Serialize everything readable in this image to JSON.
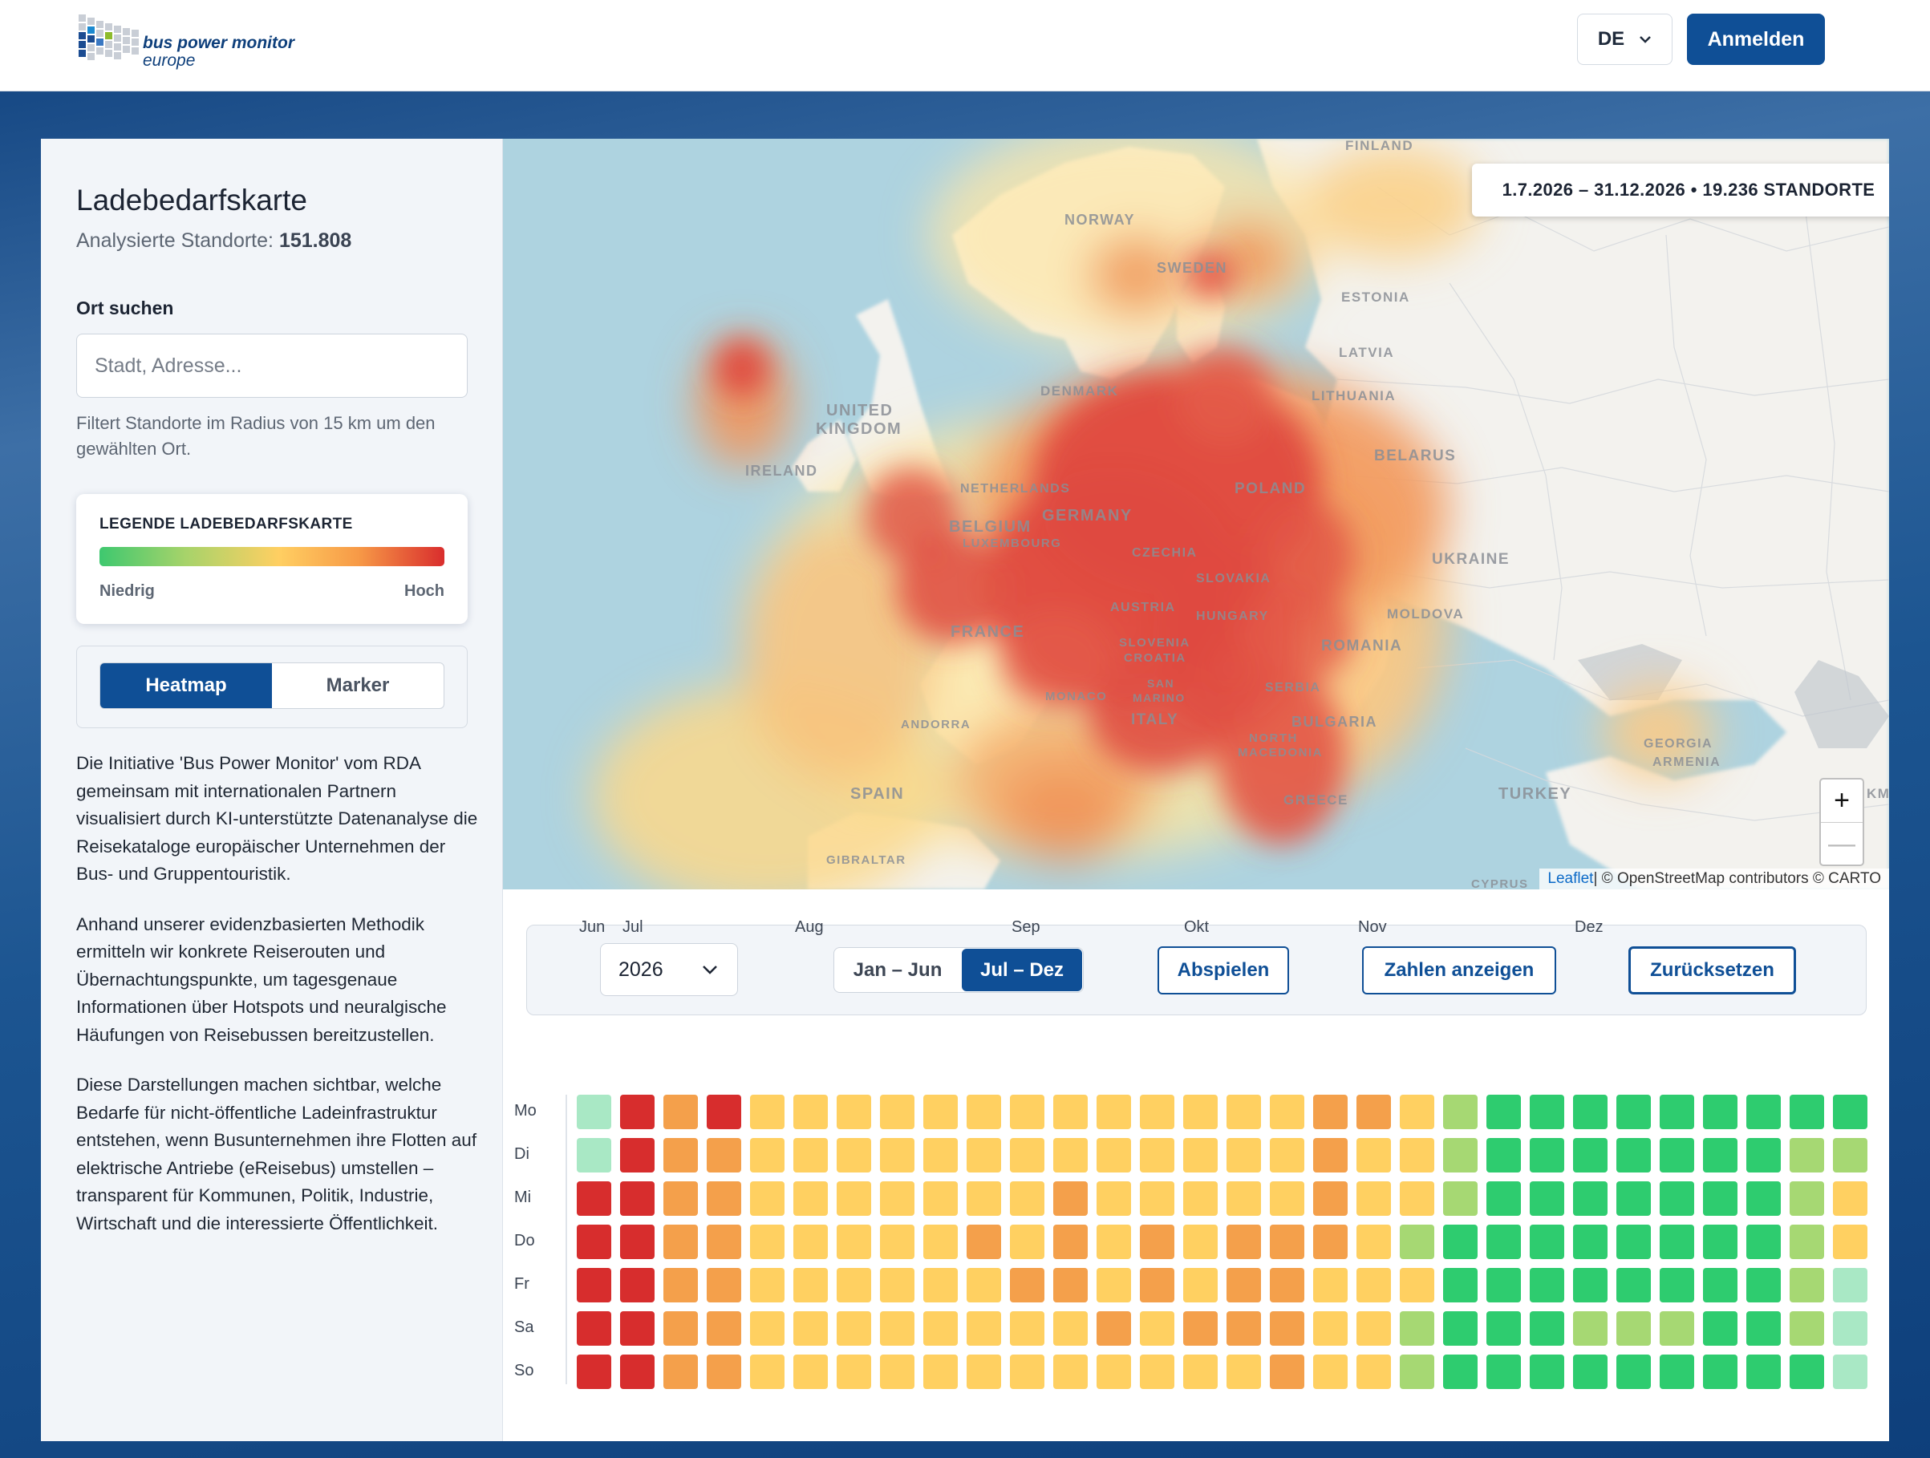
{
  "header": {
    "logo_name": "bus power monitor",
    "logo_sub": "europe",
    "language": "DE",
    "login_label": "Anmelden"
  },
  "sidebar": {
    "title": "Ladebedarfskarte",
    "count_label": "Analysierte Standorte:",
    "count_value": "151.808",
    "search_label": "Ort suchen",
    "search_placeholder": "Stadt, Adresse...",
    "search_hint": "Filtert Standorte im Radius von 15 km um den gewählten Ort.",
    "legend_title": "LEGENDE LADEBEDARFSKARTE",
    "legend_low": "Niedrig",
    "legend_high": "Hoch",
    "view_heatmap": "Heatmap",
    "view_marker": "Marker",
    "paragraphs": [
      "Die Initiative 'Bus Power Monitor' vom RDA gemeinsam mit internationalen Partnern visualisiert durch KI-unterstützte Datenanalyse die Reisekataloge europäischer Unternehmen der Bus- und Gruppentouristik.",
      "Anhand unserer evidenzbasierten Methodik ermitteln wir konkrete Reiserouten und Übernachtungspunkte, um tagesgenaue Informationen über Hotspots und neuralgische Häufungen von Reisebussen bereitzustellen.",
      "Diese Darstellungen machen sichtbar, welche Bedarfe für nicht-öffentliche Ladeinfrastruktur entstehen, wenn Busunternehmen ihre Flotten auf elektrische Antriebe (eReisebus) umstellen – transparent für Kommunen, Politik, Industrie, Wirtschaft und die interessierte Öffentlichkeit."
    ]
  },
  "map": {
    "range_badge": "1.7.2026 – 31.12.2026 • 19.236 STANDORTE",
    "zoom_in": "+",
    "zoom_out": "—",
    "attribution_link": "Leaflet",
    "attribution_text": " | © OpenStreetMap contributors © CARTO",
    "country_labels": [
      "FINLAND",
      "NORWAY",
      "SWEDEN",
      "ESTONIA",
      "LATVIA",
      "LITHUANIA",
      "DENMARK",
      "UNITED",
      "KINGDOM",
      "IRELAND",
      "NETHERLANDS",
      "BELGIUM",
      "LUXEMBOURG",
      "GERMANY",
      "POLAND",
      "BELARUS",
      "CZECHIA",
      "SLOVAKIA",
      "UKRAINE",
      "AUSTRIA",
      "HUNGARY",
      "MOLDOVA",
      "FRANCE",
      "SLOVENIA",
      "CROATIA",
      "ROMANIA",
      "SERBIA",
      "SAN",
      "MARINO",
      "MONACO",
      "ANDORRA",
      "ITALY",
      "BULGARIA",
      "NORTH",
      "MACEDONIA",
      "SPAIN",
      "GEORGIA",
      "ARMENIA",
      "TURKEY",
      "GREECE",
      "GIBRALTAR",
      "CYPRUS",
      "KM"
    ],
    "colors": {
      "low": "#3ec86f",
      "mid": "#ffcf62",
      "high": "#d92d2d"
    }
  },
  "controls": {
    "year": "2026",
    "half_1": "Jan – Jun",
    "half_2": "Jul – Dez",
    "play_label": "Abspielen",
    "numbers_label": "Zahlen anzeigen",
    "reset_label": "Zurücksetzen"
  },
  "calendar": {
    "months": [
      "Jun",
      "Jul",
      "Aug",
      "Sep",
      "Okt",
      "Nov",
      "Dez"
    ],
    "days": [
      "Mo",
      "Di",
      "Mi",
      "Do",
      "Fr",
      "Sa",
      "So"
    ],
    "level_colors": [
      "#a9e8c5",
      "#a6d873",
      "#2ecc6f",
      "#ffd061",
      "#f4a04b",
      "#d72d2d"
    ],
    "weeks": [
      [
        0,
        0,
        5,
        5,
        5,
        5,
        5
      ],
      [
        5,
        5,
        5,
        5,
        5,
        5,
        5
      ],
      [
        4,
        4,
        4,
        4,
        4,
        4,
        4
      ],
      [
        5,
        4,
        4,
        4,
        4,
        4,
        4
      ],
      [
        3,
        3,
        3,
        3,
        3,
        3,
        3
      ],
      [
        3,
        3,
        3,
        3,
        3,
        3,
        3
      ],
      [
        3,
        3,
        3,
        3,
        3,
        3,
        3
      ],
      [
        3,
        3,
        3,
        3,
        3,
        3,
        3
      ],
      [
        3,
        3,
        3,
        3,
        3,
        3,
        3
      ],
      [
        3,
        3,
        3,
        4,
        3,
        3,
        3
      ],
      [
        3,
        3,
        3,
        3,
        4,
        3,
        3
      ],
      [
        3,
        3,
        4,
        4,
        4,
        3,
        3
      ],
      [
        3,
        3,
        3,
        3,
        3,
        4,
        3
      ],
      [
        3,
        3,
        3,
        4,
        4,
        3,
        3
      ],
      [
        3,
        3,
        3,
        3,
        3,
        4,
        3
      ],
      [
        3,
        3,
        3,
        4,
        4,
        4,
        3
      ],
      [
        3,
        3,
        3,
        4,
        4,
        4,
        4
      ],
      [
        4,
        4,
        4,
        4,
        3,
        3,
        3
      ],
      [
        4,
        3,
        3,
        3,
        3,
        3,
        3
      ],
      [
        3,
        3,
        3,
        1,
        3,
        1,
        1
      ],
      [
        1,
        1,
        1,
        2,
        2,
        2,
        2
      ],
      [
        2,
        2,
        2,
        2,
        2,
        2,
        2
      ],
      [
        2,
        2,
        2,
        2,
        2,
        2,
        2
      ],
      [
        2,
        2,
        2,
        2,
        2,
        1,
        2
      ],
      [
        2,
        2,
        2,
        2,
        2,
        1,
        2
      ],
      [
        2,
        2,
        2,
        2,
        2,
        1,
        2
      ],
      [
        2,
        2,
        2,
        2,
        2,
        2,
        2
      ],
      [
        2,
        2,
        2,
        2,
        2,
        2,
        2
      ],
      [
        2,
        1,
        1,
        1,
        1,
        1,
        2
      ],
      [
        2,
        1,
        3,
        3,
        0,
        0,
        0
      ]
    ]
  }
}
